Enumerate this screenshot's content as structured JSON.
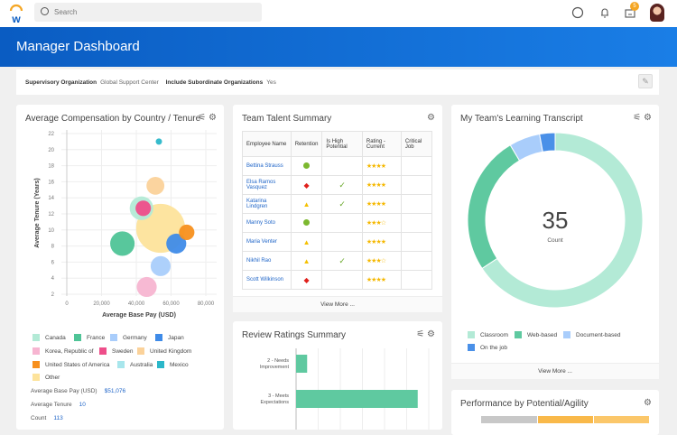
{
  "topbar": {
    "search_placeholder": "Search",
    "notification_badge": "5"
  },
  "page": {
    "title": "Manager Dashboard"
  },
  "filters": {
    "org_label": "Supervisory Organization",
    "org_value": "Global Support Center",
    "sub_label": "Include Subordinate Organizations",
    "sub_value": "Yes"
  },
  "comp": {
    "title": "Average Compensation by Country / Tenure",
    "legend": [
      {
        "name": "Canada",
        "color": "#b3ead6"
      },
      {
        "name": "France",
        "color": "#4fc497"
      },
      {
        "name": "Germany",
        "color": "#a9cdfb"
      },
      {
        "name": "Japan",
        "color": "#3f8be8"
      },
      {
        "name": "Korea, Republic of",
        "color": "#f7b5d1"
      },
      {
        "name": "Sweden",
        "color": "#ee4e8a"
      },
      {
        "name": "United Kingdom",
        "color": "#fbd29a"
      },
      {
        "name": "United States of America",
        "color": "#f7901e"
      },
      {
        "name": "Australia",
        "color": "#a8e6ec"
      },
      {
        "name": "Mexico",
        "color": "#2bb7c9"
      },
      {
        "name": "Other",
        "color": "#fde39b"
      }
    ],
    "stats": [
      {
        "label": "Average Base Pay (USD)",
        "value": "$51,076"
      },
      {
        "label": "Average Tenure",
        "value": "10"
      },
      {
        "label": "Count",
        "value": "113"
      }
    ]
  },
  "chart_data": [
    {
      "type": "scatter",
      "title": "Average Compensation by Country / Tenure",
      "xlabel": "Average Base Pay (USD)",
      "ylabel": "Average Tenure (Years)",
      "xlim": [
        0,
        80000
      ],
      "ylim": [
        2,
        22
      ],
      "xticks": [
        "0",
        "20,000",
        "40,000",
        "60,000",
        "80,000"
      ],
      "yticks": [
        "2",
        "4",
        "6",
        "8",
        "10",
        "12",
        "14",
        "16",
        "18",
        "20",
        "22"
      ],
      "grid": true,
      "points": [
        {
          "series": "Mexico",
          "x": 53000,
          "y": 21,
          "size": 1
        },
        {
          "series": "United Kingdom",
          "x": 51000,
          "y": 15.5,
          "size": 8
        },
        {
          "series": "Canada",
          "x": 43000,
          "y": 12.7,
          "size": 14
        },
        {
          "series": "Sweden",
          "x": 44000,
          "y": 12.7,
          "size": 6
        },
        {
          "series": "Other",
          "x": 54000,
          "y": 10.2,
          "size": 60
        },
        {
          "series": "United States of America",
          "x": 69000,
          "y": 9.7,
          "size": 6
        },
        {
          "series": "Japan",
          "x": 63000,
          "y": 8.3,
          "size": 10
        },
        {
          "series": "France",
          "x": 32000,
          "y": 8.3,
          "size": 15
        },
        {
          "series": "Germany",
          "x": 54000,
          "y": 5.5,
          "size": 10
        },
        {
          "series": "Korea, Republic of",
          "x": 46000,
          "y": 2.9,
          "size": 10
        }
      ]
    },
    {
      "type": "pie",
      "title": "My Team's Learning Transcript",
      "center_value": "35",
      "center_label": "Count",
      "categories": [
        "Classroom",
        "Web-based",
        "Document-based",
        "On the job"
      ],
      "values": [
        23,
        9,
        2,
        1
      ],
      "colors": [
        "#b3ead6",
        "#5fc9a0",
        "#a9cdfb",
        "#4a90e8"
      ]
    },
    {
      "type": "bar",
      "orientation": "horizontal",
      "title": "Review Ratings Summary",
      "categories": [
        "2 - Needs Improvement",
        "3 - Meets Expectations"
      ],
      "values": [
        1,
        11
      ],
      "xlim": [
        0,
        12
      ],
      "grid": true,
      "color": "#5fc9a0"
    }
  ],
  "talent": {
    "title": "Team Talent Summary",
    "columns": [
      "Employee Name",
      "Retention",
      "Is High Potential",
      "Rating - Current",
      "Critical Job"
    ],
    "rows": [
      {
        "name": "Bettina Strauss",
        "retention": "low",
        "hipo": false,
        "stars": "★★★★"
      },
      {
        "name": "Elsa Ramos Vasquez",
        "retention": "high",
        "hipo": true,
        "stars": "★★★★"
      },
      {
        "name": "Katarina Lindgren",
        "retention": "medium",
        "hipo": true,
        "stars": "★★★★"
      },
      {
        "name": "Manny Soto",
        "retention": "low",
        "hipo": false,
        "stars": "★★★☆"
      },
      {
        "name": "Maria Venter",
        "retention": "medium",
        "hipo": false,
        "stars": "★★★★"
      },
      {
        "name": "Nikhil Rao",
        "retention": "medium",
        "hipo": true,
        "stars": "★★★☆"
      },
      {
        "name": "Scott Wilkinson",
        "retention": "high",
        "hipo": false,
        "stars": "★★★★"
      }
    ],
    "view_more": "View More ..."
  },
  "learning": {
    "title": "My Team's Learning Transcript",
    "view_more": "View More ..."
  },
  "review": {
    "title": "Review Ratings Summary"
  },
  "perf": {
    "title": "Performance by Potential/Agility"
  }
}
